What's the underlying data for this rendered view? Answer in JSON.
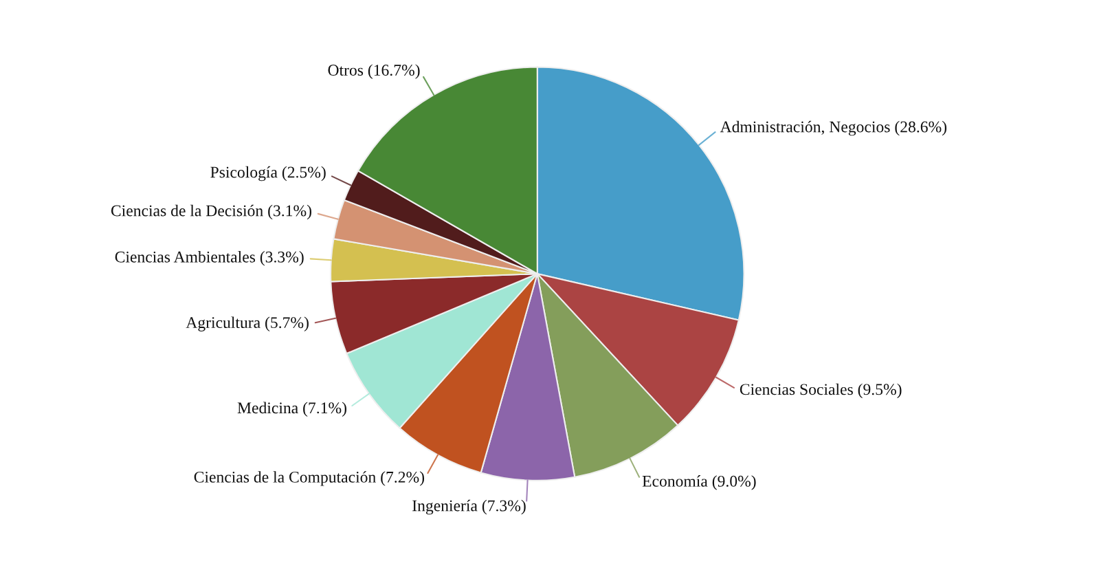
{
  "chart_data": {
    "type": "pie",
    "categories": [
      "Administración, Negocios (28.6%)",
      "Ciencias Sociales (9.5%)",
      "Economía (9.0%)",
      "Ingeniería (7.3%)",
      "Ciencias de la Computación (7.2%)",
      "Medicina (7.1%)",
      "Agricultura (5.7%)",
      "Ciencias Ambientales (3.3%)",
      "Ciencias de la Decisión (3.1%)",
      "Psicología (2.5%)",
      "Otros (16.7%)"
    ],
    "values": [
      28.6,
      9.5,
      9.0,
      7.3,
      7.2,
      7.1,
      5.7,
      3.3,
      3.1,
      2.5,
      16.7
    ],
    "colors": [
      "#469dc9",
      "#ab4443",
      "#849e5b",
      "#8c65aa",
      "#c05220",
      "#a0e6d4",
      "#8b2a2a",
      "#d4c050",
      "#d49272",
      "#511c1c",
      "#488835"
    ]
  }
}
